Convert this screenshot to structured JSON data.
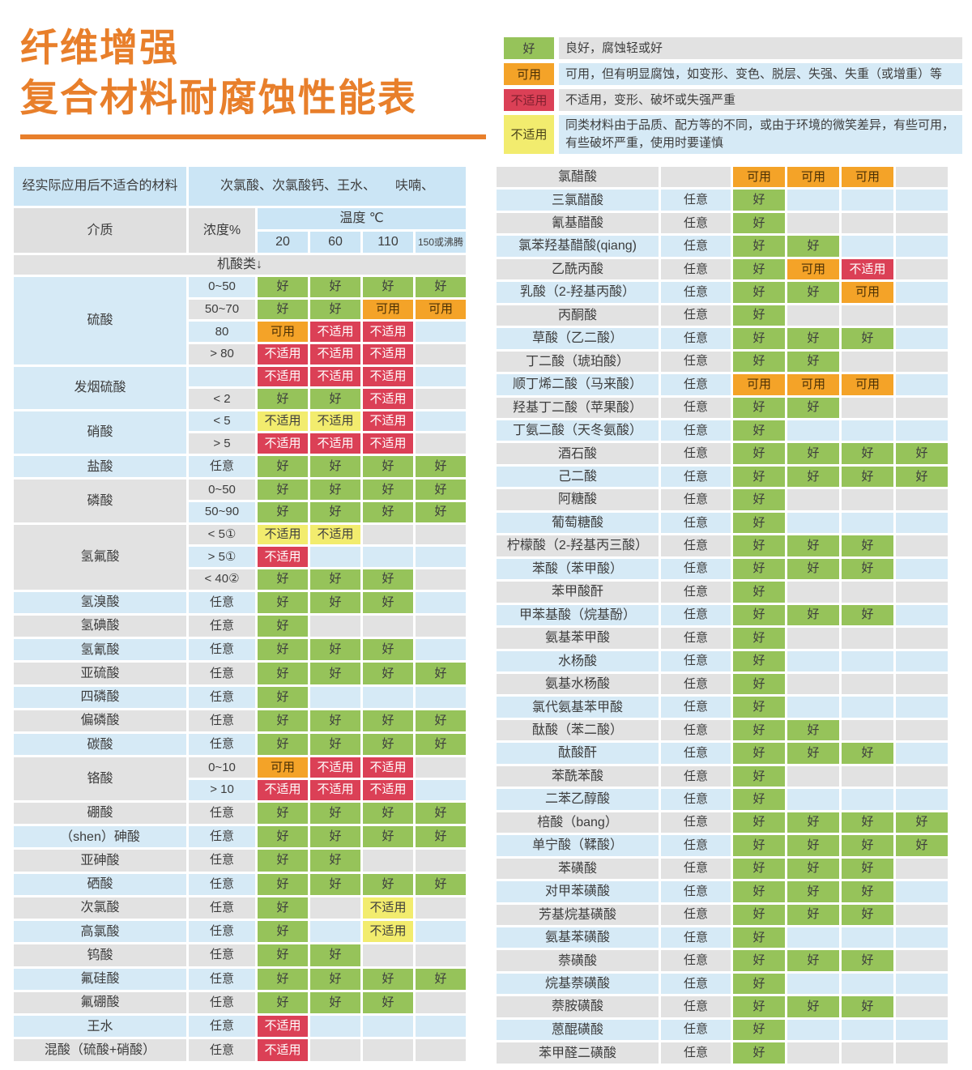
{
  "title": {
    "line1": "纤维增强",
    "line2": "复合材料耐腐蚀性能表"
  },
  "colors": {
    "title_accent": "#e87f2b",
    "good": "#96c35a",
    "usable": "#f4a328",
    "unsuitable": "#db4056",
    "caution": "#f2ec6e",
    "row_blue": "#d6eaf6",
    "row_gray": "#e2e2e2",
    "header_blue": "#cbe5f5"
  },
  "status_labels": {
    "good": "好",
    "usable": "可用",
    "unsuitable": "不适用",
    "caution": "不适用"
  },
  "legend": [
    {
      "type": "good",
      "swatch": "好",
      "desc": "良好，腐蚀轻或好"
    },
    {
      "type": "usable",
      "swatch": "可用",
      "desc": "可用，但有明显腐蚀，如变形、变色、脱层、失强、失重（或增重）等"
    },
    {
      "type": "unsuitable",
      "swatch": "不适用",
      "desc": "不适用，变形、破坏或失强严重"
    },
    {
      "type": "caution",
      "swatch": "不适用",
      "desc": "同类材料由于品质、配方等的不同，或由于环境的微笑差异，有些可用，有些破坏严重，使用时要谨慎"
    }
  ],
  "left_table": {
    "header": {
      "unsuitable_label": "经实际应用后不适合的材料",
      "unsuitable_value": "次氯酸、次氯酸钙、王水、　　呋喃、",
      "medium": "介质",
      "concentration": "浓度%",
      "temperature": "温度 ℃",
      "temps": [
        "20",
        "60",
        "110",
        "150或沸腾"
      ],
      "section": "机酸类↓"
    },
    "groups": [
      {
        "name": "硫酸",
        "rows": [
          {
            "conc": "0~50",
            "cells": [
              "good",
              "good",
              "good",
              "good"
            ]
          },
          {
            "conc": "50~70",
            "cells": [
              "good",
              "good",
              "usable",
              "usable"
            ]
          },
          {
            "conc": "80",
            "cells": [
              "usable",
              "unsuitable",
              "unsuitable",
              ""
            ]
          },
          {
            "conc": "> 80",
            "cells": [
              "unsuitable",
              "unsuitable",
              "unsuitable",
              ""
            ]
          }
        ]
      },
      {
        "name": "发烟硫酸",
        "rows": [
          {
            "conc": "",
            "cells": [
              "unsuitable",
              "unsuitable",
              "unsuitable",
              ""
            ]
          },
          {
            "conc": "< 2",
            "cells": [
              "good",
              "good",
              "unsuitable",
              ""
            ]
          }
        ]
      },
      {
        "name": "硝酸",
        "rows": [
          {
            "conc": "< 5",
            "cells": [
              "caution",
              "caution",
              "unsuitable",
              ""
            ]
          },
          {
            "conc": "> 5",
            "cells": [
              "unsuitable",
              "unsuitable",
              "unsuitable",
              ""
            ]
          }
        ]
      },
      {
        "name": "盐酸",
        "rows": [
          {
            "conc": "任意",
            "cells": [
              "good",
              "good",
              "good",
              "good"
            ]
          }
        ]
      },
      {
        "name": "磷酸",
        "rows": [
          {
            "conc": "0~50",
            "cells": [
              "good",
              "good",
              "good",
              "good"
            ]
          },
          {
            "conc": "50~90",
            "cells": [
              "good",
              "good",
              "good",
              "good"
            ]
          }
        ]
      },
      {
        "name": "氢氟酸",
        "rows": [
          {
            "conc": "< 5①",
            "cells": [
              "caution",
              "caution",
              "",
              ""
            ]
          },
          {
            "conc": "> 5①",
            "cells": [
              "unsuitable",
              "",
              "",
              ""
            ]
          },
          {
            "conc": "< 40②",
            "cells": [
              "good",
              "good",
              "good",
              ""
            ]
          }
        ]
      },
      {
        "name": "氢溴酸",
        "rows": [
          {
            "conc": "任意",
            "cells": [
              "good",
              "good",
              "good",
              ""
            ]
          }
        ]
      },
      {
        "name": "氢碘酸",
        "rows": [
          {
            "conc": "任意",
            "cells": [
              "good",
              "",
              "",
              ""
            ]
          }
        ]
      },
      {
        "name": "氢氰酸",
        "rows": [
          {
            "conc": "任意",
            "cells": [
              "good",
              "good",
              "good",
              ""
            ]
          }
        ]
      },
      {
        "name": "亚硫酸",
        "rows": [
          {
            "conc": "任意",
            "cells": [
              "good",
              "good",
              "good",
              "good"
            ]
          }
        ]
      },
      {
        "name": "四磷酸",
        "rows": [
          {
            "conc": "任意",
            "cells": [
              "good",
              "",
              "",
              ""
            ]
          }
        ]
      },
      {
        "name": "偏磷酸",
        "rows": [
          {
            "conc": "任意",
            "cells": [
              "good",
              "good",
              "good",
              "good"
            ]
          }
        ]
      },
      {
        "name": "碳酸",
        "rows": [
          {
            "conc": "任意",
            "cells": [
              "good",
              "good",
              "good",
              "good"
            ]
          }
        ]
      },
      {
        "name": "铬酸",
        "rows": [
          {
            "conc": "0~10",
            "cells": [
              "usable",
              "unsuitable",
              "unsuitable",
              ""
            ]
          },
          {
            "conc": "> 10",
            "cells": [
              "unsuitable",
              "unsuitable",
              "unsuitable",
              ""
            ]
          }
        ]
      },
      {
        "name": "硼酸",
        "rows": [
          {
            "conc": "任意",
            "cells": [
              "good",
              "good",
              "good",
              "good"
            ]
          }
        ]
      },
      {
        "name": "（shen）砷酸",
        "rows": [
          {
            "conc": "任意",
            "cells": [
              "good",
              "good",
              "good",
              "good"
            ]
          }
        ]
      },
      {
        "name": "亚砷酸",
        "rows": [
          {
            "conc": "任意",
            "cells": [
              "good",
              "good",
              "",
              ""
            ]
          }
        ]
      },
      {
        "name": "硒酸",
        "rows": [
          {
            "conc": "任意",
            "cells": [
              "good",
              "good",
              "good",
              "good"
            ]
          }
        ]
      },
      {
        "name": "次氯酸",
        "rows": [
          {
            "conc": "任意",
            "cells": [
              "good",
              "",
              "caution",
              ""
            ]
          }
        ]
      },
      {
        "name": "高氯酸",
        "rows": [
          {
            "conc": "任意",
            "cells": [
              "good",
              "",
              "caution",
              ""
            ]
          }
        ]
      },
      {
        "name": "钨酸",
        "rows": [
          {
            "conc": "任意",
            "cells": [
              "good",
              "good",
              "",
              ""
            ]
          }
        ]
      },
      {
        "name": "氟硅酸",
        "rows": [
          {
            "conc": "任意",
            "cells": [
              "good",
              "good",
              "good",
              "good"
            ]
          }
        ]
      },
      {
        "name": "氟硼酸",
        "rows": [
          {
            "conc": "任意",
            "cells": [
              "good",
              "good",
              "good",
              ""
            ]
          }
        ]
      },
      {
        "name": "王水",
        "rows": [
          {
            "conc": "任意",
            "cells": [
              "unsuitable",
              "",
              "",
              ""
            ]
          }
        ]
      },
      {
        "name": "混酸（硫酸+硝酸）",
        "rows": [
          {
            "conc": "任意",
            "cells": [
              "unsuitable",
              "",
              "",
              ""
            ]
          }
        ]
      }
    ]
  },
  "right_table": {
    "rows": [
      {
        "name": "氯醋酸",
        "conc": "",
        "cells": [
          "usable",
          "usable",
          "usable",
          ""
        ]
      },
      {
        "name": "三氯醋酸",
        "conc": "任意",
        "cells": [
          "good",
          "",
          "",
          ""
        ]
      },
      {
        "name": "氰基醋酸",
        "conc": "任意",
        "cells": [
          "good",
          "",
          "",
          ""
        ]
      },
      {
        "name": "氯苯羟基醋酸(qiang)",
        "conc": "任意",
        "cells": [
          "good",
          "good",
          "",
          ""
        ]
      },
      {
        "name": "乙酰丙酸",
        "conc": "任意",
        "cells": [
          "good",
          "usable",
          "unsuitable",
          ""
        ]
      },
      {
        "name": "乳酸（2-羟基丙酸）",
        "conc": "任意",
        "cells": [
          "good",
          "good",
          "usable",
          ""
        ]
      },
      {
        "name": "丙酮酸",
        "conc": "任意",
        "cells": [
          "good",
          "",
          "",
          ""
        ]
      },
      {
        "name": "草酸（乙二酸）",
        "conc": "任意",
        "cells": [
          "good",
          "good",
          "good",
          ""
        ]
      },
      {
        "name": "丁二酸（琥珀酸）",
        "conc": "任意",
        "cells": [
          "good",
          "good",
          "",
          ""
        ]
      },
      {
        "name": "顺丁烯二酸（马来酸）",
        "conc": "任意",
        "cells": [
          "usable",
          "usable",
          "usable",
          ""
        ]
      },
      {
        "name": "羟基丁二酸（苹果酸）",
        "conc": "任意",
        "cells": [
          "good",
          "good",
          "",
          ""
        ]
      },
      {
        "name": "丁氨二酸（天冬氨酸）",
        "conc": "任意",
        "cells": [
          "good",
          "",
          "",
          ""
        ]
      },
      {
        "name": "酒石酸",
        "conc": "任意",
        "cells": [
          "good",
          "good",
          "good",
          "good"
        ]
      },
      {
        "name": "己二酸",
        "conc": "任意",
        "cells": [
          "good",
          "good",
          "good",
          "good"
        ]
      },
      {
        "name": "阿糖酸",
        "conc": "任意",
        "cells": [
          "good",
          "",
          "",
          ""
        ]
      },
      {
        "name": "葡萄糖酸",
        "conc": "任意",
        "cells": [
          "good",
          "",
          "",
          ""
        ]
      },
      {
        "name": "柠檬酸（2-羟基丙三酸）",
        "conc": "任意",
        "cells": [
          "good",
          "good",
          "good",
          ""
        ]
      },
      {
        "name": "苯酸（苯甲酸）",
        "conc": "任意",
        "cells": [
          "good",
          "good",
          "good",
          ""
        ]
      },
      {
        "name": "苯甲酸酐",
        "conc": "任意",
        "cells": [
          "good",
          "",
          "",
          ""
        ]
      },
      {
        "name": "甲苯基酸（烷基酚）",
        "conc": "任意",
        "cells": [
          "good",
          "good",
          "good",
          ""
        ]
      },
      {
        "name": "氨基苯甲酸",
        "conc": "任意",
        "cells": [
          "good",
          "",
          "",
          ""
        ]
      },
      {
        "name": "水杨酸",
        "conc": "任意",
        "cells": [
          "good",
          "",
          "",
          ""
        ]
      },
      {
        "name": "氨基水杨酸",
        "conc": "任意",
        "cells": [
          "good",
          "",
          "",
          ""
        ]
      },
      {
        "name": "氯代氨基苯甲酸",
        "conc": "任意",
        "cells": [
          "good",
          "",
          "",
          ""
        ]
      },
      {
        "name": "酞酸（苯二酸）",
        "conc": "任意",
        "cells": [
          "good",
          "good",
          "",
          ""
        ]
      },
      {
        "name": "酞酸酐",
        "conc": "任意",
        "cells": [
          "good",
          "good",
          "good",
          ""
        ]
      },
      {
        "name": "苯酰苯酸",
        "conc": "任意",
        "cells": [
          "good",
          "",
          "",
          ""
        ]
      },
      {
        "name": "二苯乙醇酸",
        "conc": "任意",
        "cells": [
          "good",
          "",
          "",
          ""
        ]
      },
      {
        "name": "棓酸（bang）",
        "conc": "任意",
        "cells": [
          "good",
          "good",
          "good",
          "good"
        ]
      },
      {
        "name": "单宁酸（鞣酸）",
        "conc": "任意",
        "cells": [
          "good",
          "good",
          "good",
          "good"
        ]
      },
      {
        "name": "苯磺酸",
        "conc": "任意",
        "cells": [
          "good",
          "good",
          "good",
          ""
        ]
      },
      {
        "name": "对甲苯磺酸",
        "conc": "任意",
        "cells": [
          "good",
          "good",
          "good",
          ""
        ]
      },
      {
        "name": "芳基烷基磺酸",
        "conc": "任意",
        "cells": [
          "good",
          "good",
          "good",
          ""
        ]
      },
      {
        "name": "氨基苯磺酸",
        "conc": "任意",
        "cells": [
          "good",
          "",
          "",
          ""
        ]
      },
      {
        "name": "萘磺酸",
        "conc": "任意",
        "cells": [
          "good",
          "good",
          "good",
          ""
        ]
      },
      {
        "name": "烷基萘磺酸",
        "conc": "任意",
        "cells": [
          "good",
          "",
          "",
          ""
        ]
      },
      {
        "name": "萘胺磺酸",
        "conc": "任意",
        "cells": [
          "good",
          "good",
          "good",
          ""
        ]
      },
      {
        "name": "蒽醌磺酸",
        "conc": "任意",
        "cells": [
          "good",
          "",
          "",
          ""
        ]
      },
      {
        "name": "苯甲醛二磺酸",
        "conc": "任意",
        "cells": [
          "good",
          "",
          "",
          ""
        ]
      }
    ]
  }
}
